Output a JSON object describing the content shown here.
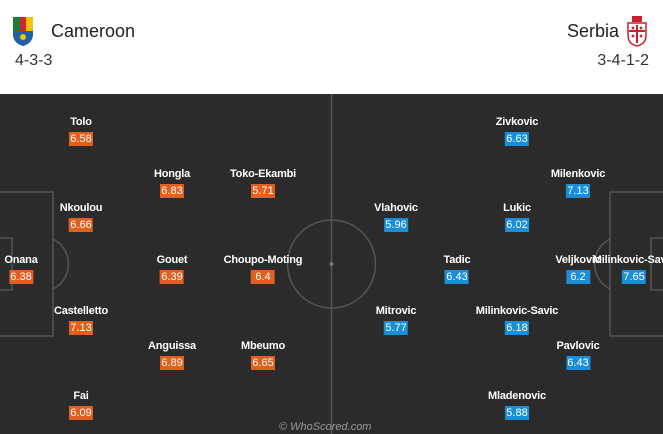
{
  "home": {
    "name": "Cameroon",
    "formation": "4-3-3",
    "crest_icon": "cameroon-crest-icon",
    "rating_color": "#e2601f",
    "players": [
      {
        "name": "Tolo",
        "rating": "6.58"
      },
      {
        "name": "Hongla",
        "rating": "6.83"
      },
      {
        "name": "Toko-Ekambi",
        "rating": "5.71"
      },
      {
        "name": "Nkoulou",
        "rating": "6.66"
      },
      {
        "name": "Onana",
        "rating": "6.38"
      },
      {
        "name": "Gouet",
        "rating": "6.39"
      },
      {
        "name": "Choupo-Moting",
        "rating": "6.4"
      },
      {
        "name": "Castelletto",
        "rating": "7.13"
      },
      {
        "name": "Anguissa",
        "rating": "6.89"
      },
      {
        "name": "Mbeumo",
        "rating": "6.65"
      },
      {
        "name": "Fai",
        "rating": "6.09"
      }
    ]
  },
  "away": {
    "name": "Serbia",
    "formation": "3-4-1-2",
    "crest_icon": "serbia-crest-icon",
    "rating_color": "#1a8fd8",
    "players": [
      {
        "name": "Zivkovic",
        "rating": "6.63"
      },
      {
        "name": "Milenkovic",
        "rating": "7.13"
      },
      {
        "name": "Vlahovic",
        "rating": "5.96"
      },
      {
        "name": "Lukic",
        "rating": "6.02"
      },
      {
        "name": "Tadic",
        "rating": "6.43"
      },
      {
        "name": "Veljkovic",
        "rating": "6.2"
      },
      {
        "name": "Milinkovic-Savic",
        "rating": "7.65"
      },
      {
        "name": "Mitrovic",
        "rating": "5.77"
      },
      {
        "name": "Milinkovic-Savic",
        "rating": "6.18"
      },
      {
        "name": "Pavlovic",
        "rating": "6.43"
      },
      {
        "name": "Mladenovic",
        "rating": "5.88"
      }
    ]
  },
  "watermark": "© WhoScored.com",
  "colors": {
    "pitch": "#2b2b2b",
    "lines": "#555555"
  }
}
